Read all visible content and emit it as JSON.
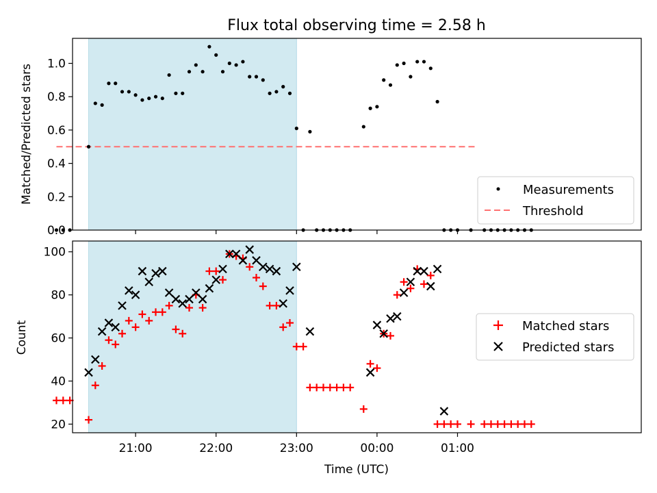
{
  "chart_data": [
    {
      "type": "scatter",
      "title": "Flux total observing time = 2.58 h",
      "xlabel": "",
      "ylabel": "Matched/Predicted stars",
      "ylim": [
        0,
        1.15
      ],
      "yticks": [
        0.0,
        0.2,
        0.4,
        0.6,
        0.8,
        1.0
      ],
      "ytick_labels": [
        "0.0",
        "0.2",
        "0.4",
        "0.6",
        "0.8",
        "1.0"
      ],
      "xlim_minutes_after_2030": [
        -17,
        407
      ],
      "shaded_interval_minutes_after_2030": [
        -5,
        150
      ],
      "legend_position": "lower right",
      "threshold": {
        "name": "Threshold",
        "value": 0.5,
        "x_range_minutes_after_2030": [
          -29,
          283
        ],
        "color": "#ff7070"
      },
      "series": [
        {
          "name": "Measurements",
          "marker": "dot",
          "color": "#000000",
          "x_minutes_after_2030": [
            -29,
            -24,
            -19,
            -5,
            0,
            5,
            10,
            15,
            20,
            25,
            30,
            35,
            40,
            45,
            50,
            55,
            60,
            65,
            70,
            75,
            80,
            85,
            90,
            95,
            100,
            105,
            110,
            115,
            120,
            125,
            130,
            135,
            140,
            145,
            150,
            155,
            160,
            165,
            170,
            175,
            180,
            185,
            190,
            200,
            205,
            210,
            215,
            220,
            225,
            230,
            235,
            240,
            245,
            250,
            255,
            260,
            265,
            270,
            280,
            290,
            295,
            300,
            305,
            310,
            315,
            320,
            325
          ],
          "y": [
            0,
            0,
            0,
            0.5,
            0.76,
            0.75,
            0.88,
            0.88,
            0.83,
            0.83,
            0.81,
            0.78,
            0.79,
            0.8,
            0.79,
            0.93,
            0.82,
            0.82,
            0.95,
            0.99,
            0.95,
            1.1,
            1.05,
            0.95,
            1.0,
            0.99,
            1.01,
            0.92,
            0.92,
            0.9,
            0.82,
            0.83,
            0.86,
            0.82,
            0.61,
            0,
            0.59,
            0,
            0,
            0,
            0,
            0,
            0,
            0.62,
            0.73,
            0.74,
            0.9,
            0.87,
            0.99,
            1.0,
            0.92,
            1.01,
            1.01,
            0.97,
            0.77,
            0,
            0,
            0,
            0,
            0,
            0,
            0,
            0,
            0,
            0,
            0,
            0
          ]
        }
      ]
    },
    {
      "type": "scatter",
      "title": "",
      "xlabel": "Time (UTC)",
      "ylabel": "Count",
      "ylim": [
        16,
        105
      ],
      "yticks": [
        20,
        40,
        60,
        80,
        100
      ],
      "ytick_labels": [
        "20",
        "40",
        "60",
        "80",
        "100"
      ],
      "xticks_minutes_after_2030": [
        30,
        90,
        150,
        210,
        270
      ],
      "xtick_labels": [
        "21:00",
        "22:00",
        "23:00",
        "00:00",
        "01:00"
      ],
      "legend_position": "center right",
      "series": [
        {
          "name": "Matched stars",
          "marker": "plus",
          "color": "#ff0000",
          "x_minutes_after_2030": [
            -29,
            -24,
            -19,
            -5,
            0,
            5,
            10,
            15,
            20,
            25,
            30,
            35,
            40,
            45,
            50,
            55,
            60,
            65,
            70,
            75,
            80,
            85,
            90,
            95,
            100,
            105,
            110,
            115,
            120,
            125,
            130,
            135,
            140,
            145,
            150,
            155,
            160,
            165,
            170,
            175,
            180,
            185,
            190,
            200,
            205,
            210,
            215,
            220,
            225,
            230,
            235,
            240,
            245,
            250,
            255,
            260,
            265,
            270,
            280,
            290,
            295,
            300,
            305,
            310,
            315,
            320,
            325
          ],
          "y": [
            31,
            31,
            31,
            22,
            38,
            47,
            59,
            57,
            62,
            68,
            65,
            71,
            68,
            72,
            72,
            75,
            64,
            62,
            74,
            80,
            74,
            91,
            91,
            87,
            99,
            98,
            97,
            93,
            88,
            84,
            75,
            75,
            65,
            67,
            56,
            56,
            37,
            37,
            37,
            37,
            37,
            37,
            37,
            27,
            48,
            46,
            62,
            61,
            80,
            86,
            83,
            92,
            85,
            89,
            20,
            20,
            20,
            20,
            20,
            20,
            20,
            20,
            20,
            20,
            20,
            20,
            20
          ]
        },
        {
          "name": "Predicted stars",
          "marker": "x",
          "color": "#000000",
          "x_minutes_after_2030": [
            -5,
            0,
            5,
            10,
            15,
            20,
            25,
            30,
            35,
            40,
            45,
            50,
            55,
            60,
            65,
            70,
            75,
            80,
            85,
            90,
            95,
            100,
            105,
            110,
            115,
            120,
            125,
            130,
            135,
            140,
            145,
            150,
            160,
            205,
            210,
            215,
            220,
            225,
            230,
            235,
            240,
            245,
            250,
            255,
            260
          ],
          "y": [
            44,
            50,
            63,
            67,
            65,
            75,
            82,
            80,
            91,
            86,
            90,
            91,
            81,
            78,
            76,
            78,
            81,
            78,
            83,
            87,
            92,
            99,
            99,
            96,
            101,
            96,
            93,
            92,
            91,
            76,
            82,
            93,
            63,
            44,
            66,
            62,
            69,
            70,
            81,
            86,
            91,
            91,
            84,
            92,
            26
          ]
        }
      ]
    }
  ]
}
